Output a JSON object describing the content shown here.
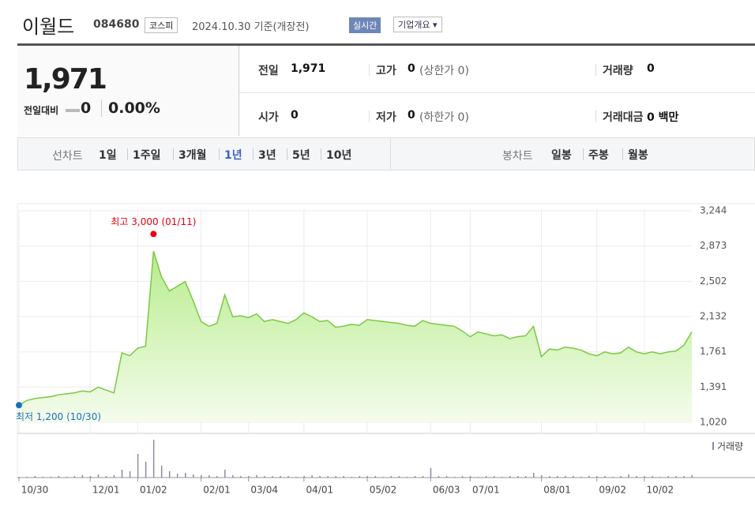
{
  "header": {
    "title": "이월드",
    "code": "084680",
    "market": "코스피",
    "date": "2024.10.30 기준(개장전)",
    "realtime": "실시간",
    "company": "기업개요"
  },
  "summary": {
    "price": "1,971",
    "change_label": "전일대비",
    "change": "0",
    "change_rate": "0.00%",
    "rows": [
      [
        {
          "label": "전일",
          "value": "1,971"
        },
        {
          "label": "고가",
          "value": "0",
          "note": "(상한가 0)"
        },
        {
          "label": "거래량",
          "value": "0"
        }
      ],
      [
        {
          "label": "시가",
          "value": "0"
        },
        {
          "label": "저가",
          "value": "0",
          "note": "(하한가 0)"
        },
        {
          "label": "거래대금",
          "value": "0 백만"
        }
      ]
    ]
  },
  "tabs": {
    "line_label": "선차트",
    "line": [
      "1일",
      "1주일",
      "3개월",
      "1년",
      "3년",
      "5년",
      "10년"
    ],
    "candle_label": "봉차트",
    "candle": [
      "일봉",
      "주봉",
      "월봉"
    ]
  },
  "chart_data": {
    "type": "line",
    "categories": [
      "10/30",
      null,
      null,
      null,
      null,
      null,
      null,
      null,
      null,
      "12/01",
      null,
      null,
      null,
      null,
      null,
      "01/02",
      null,
      null,
      null,
      null,
      null,
      null,
      null,
      "02/01",
      null,
      null,
      null,
      null,
      null,
      "03/04",
      null,
      null,
      null,
      null,
      null,
      null,
      "04/01",
      null,
      null,
      null,
      null,
      null,
      null,
      null,
      "05/02",
      null,
      null,
      null,
      null,
      null,
      null,
      null,
      "06/03",
      null,
      null,
      null,
      null,
      "07/01",
      null,
      null,
      null,
      null,
      null,
      null,
      null,
      null,
      "08/01",
      null,
      null,
      null,
      null,
      null,
      null,
      "09/02",
      null,
      null,
      null,
      null,
      null,
      "10/02",
      null,
      null,
      null,
      null,
      null,
      null
    ],
    "series": [
      {
        "color": "#7ac943",
        "values": [
          1200,
          1250,
          1270,
          1280,
          1290,
          1310,
          1320,
          1330,
          1350,
          1340,
          1390,
          1360,
          1330,
          1750,
          1720,
          1800,
          1820,
          2820,
          2550,
          2400,
          2450,
          2500,
          2300,
          2080,
          2030,
          2060,
          2360,
          2130,
          2140,
          2120,
          2160,
          2080,
          2100,
          2080,
          2060,
          2100,
          2170,
          2130,
          2080,
          2090,
          2020,
          2030,
          2050,
          2040,
          2100,
          2090,
          2080,
          2070,
          2060,
          2040,
          2030,
          2090,
          2060,
          2050,
          2040,
          2030,
          1980,
          1920,
          1970,
          1950,
          1930,
          1940,
          1900,
          1920,
          1930,
          2030,
          1710,
          1790,
          1780,
          1810,
          1800,
          1780,
          1740,
          1720,
          1760,
          1740,
          1750,
          1810,
          1760,
          1740,
          1760,
          1740,
          1760,
          1770,
          1830,
          1971
        ]
      }
    ],
    "volume": {
      "name": "거래량",
      "color": "#8a8aa8",
      "values": [
        1,
        1,
        2,
        1,
        1,
        2,
        1,
        2,
        3,
        2,
        4,
        2,
        3,
        10,
        8,
        30,
        20,
        48,
        15,
        8,
        5,
        6,
        4,
        3,
        3,
        2,
        10,
        3,
        2,
        2,
        3,
        2,
        2,
        2,
        2,
        1,
        2,
        3,
        2,
        2,
        2,
        2,
        1,
        2,
        2,
        2,
        1,
        2,
        2,
        1,
        2,
        2,
        12,
        2,
        2,
        1,
        2,
        2,
        1,
        2,
        2,
        1,
        2,
        2,
        2,
        6,
        3,
        2,
        2,
        2,
        2,
        1,
        2,
        2,
        2,
        1,
        2,
        4,
        2,
        2,
        2,
        1,
        2,
        2,
        2,
        3
      ]
    },
    "ylim": [
      1020,
      3244
    ],
    "yticks": [
      {
        "value": 1020,
        "label": "1,020"
      },
      {
        "value": 1391,
        "label": "1,391"
      },
      {
        "value": 1761,
        "label": "1,761"
      },
      {
        "value": 2132,
        "label": "2,132"
      },
      {
        "value": 2502,
        "label": "2,502"
      },
      {
        "value": 2873,
        "label": "2,873"
      },
      {
        "value": 3244,
        "label": "3,244"
      }
    ],
    "grid": true,
    "annotations": [
      {
        "text": "최고 3,000 (01/11)",
        "value": 3000,
        "kind": "max",
        "color": "#e60012"
      },
      {
        "text": "최저 1,200 (10/30)",
        "value": 1200,
        "kind": "min",
        "color": "#1a6fc0"
      }
    ]
  }
}
